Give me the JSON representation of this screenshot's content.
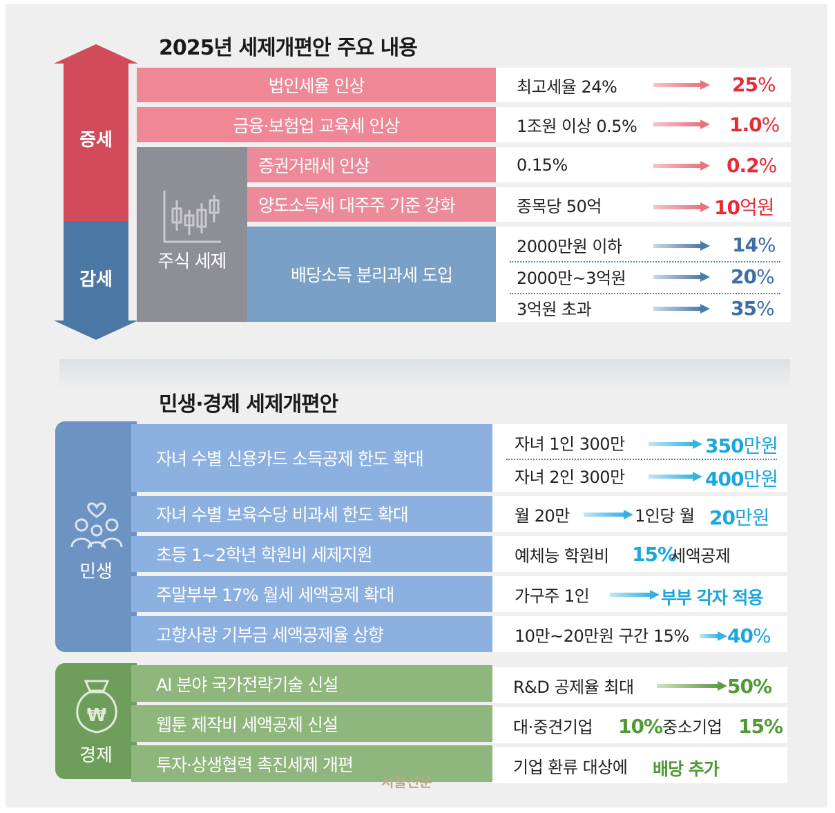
{
  "section1": {
    "title": "2025년 세제개편안 주요 내용",
    "increase_label": "증세",
    "decrease_label": "감세",
    "stock_tax_label": "주식 세제",
    "items": [
      {
        "label": "법인세율 인상",
        "from": "최고세율 24%",
        "to_num": "25",
        "to_unit": "%"
      },
      {
        "label": "금융·보험업 교육세 인상",
        "from": "1조원 이상 0.5%",
        "to_num": "1.0",
        "to_unit": "%"
      },
      {
        "label": "증권거래세 인상",
        "from": "0.15%",
        "to_num": "0.2",
        "to_unit": "%"
      },
      {
        "label": "양도소득세 대주주 기준 강화",
        "from": "종목당 50억",
        "to_num": "10",
        "to_unit": "억원"
      }
    ],
    "dividend": {
      "label": "배당소득 분리과세 도입",
      "rows": [
        {
          "from": "2000만원 이하",
          "to_num": "14",
          "to_unit": "%"
        },
        {
          "from": "2000만~3억원",
          "to_num": "20",
          "to_unit": "%"
        },
        {
          "from": "3억원 초과",
          "to_num": "35",
          "to_unit": "%"
        }
      ]
    }
  },
  "section2": {
    "title": "민생·경제 세제개편안",
    "livelihood_label": "민생",
    "economy_label": "경제",
    "livelihood": [
      {
        "label": "자녀 수별 신용카드 소득공제 한도 확대",
        "rows": [
          {
            "from": "자녀 1인 300만",
            "to_num": "350",
            "to_unit": "만원"
          },
          {
            "from": "자녀 2인 300만",
            "to_num": "400",
            "to_unit": "만원"
          }
        ]
      },
      {
        "label": "자녀 수별 보육수당 비과세 한도 확대",
        "from": "월 20만",
        "mid": "1인당 월",
        "to_num": "20",
        "to_unit": "만원"
      },
      {
        "label": "초등 1~2학년 학원비 세제지원",
        "pre": "예체능 학원비",
        "highlight": "15%",
        "post": "세액공제"
      },
      {
        "label": "주말부부 17% 월세 세액공제 확대",
        "from": "가구주 1인",
        "to": "부부 각자 적용"
      },
      {
        "label": "고향사랑 기부금 세액공제율 상향",
        "from": "10만~20만원 구간 15%",
        "to_num": "40",
        "to_unit": "%"
      }
    ],
    "economy": [
      {
        "label": "AI 분야 국가전략기술 신설",
        "from": "R&D 공제율 최대",
        "to": "50%"
      },
      {
        "label": "웹툰 제작비 세액공제 신설",
        "a_label": "대·중견기업",
        "a_val": "10%",
        "b_label": "중소기업",
        "b_val": "15%"
      },
      {
        "label": "투자·상생협력 촉진세제 개편",
        "pre": "기업 환류 대상에",
        "highlight": "배당 추가"
      }
    ]
  },
  "watermark": "서울신문",
  "colors": {
    "increase": "#d24b5a",
    "decrease": "#4a77a4",
    "pink_bar": "#ef8795",
    "livelihood_bar": "#8cb0e0",
    "economy_bar": "#8fb67c",
    "value_red": "#e62b36",
    "value_navy": "#3d6ea8",
    "value_cyan": "#1aa6de",
    "value_green": "#4f9a36"
  },
  "icons": [
    "up-down-arrow-icon",
    "candlestick-chart-icon",
    "family-heart-icon",
    "won-money-bag-icon",
    "right-arrow-icon"
  ]
}
